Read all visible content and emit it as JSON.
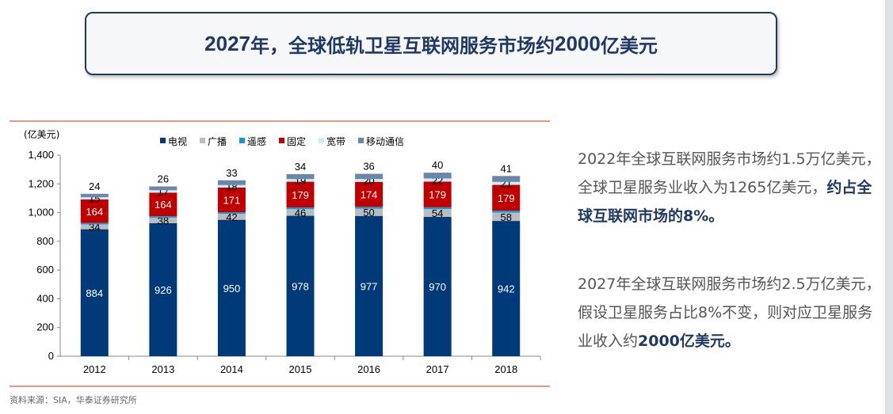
{
  "title": {
    "parts": [
      {
        "text": "2027",
        "num": true
      },
      {
        "text": "年，全球低轨卫星互联网服务市场约",
        "num": false
      },
      {
        "text": "2000",
        "num": true
      },
      {
        "text": "亿美元",
        "num": false
      }
    ]
  },
  "colors": {
    "tv": "#003a78",
    "broadcast": "#b9bcc0",
    "remote": "#1a95d4",
    "fixed": "#c00000",
    "broadband": "#c9ecf7",
    "mobile": "#6b87a8",
    "accent_line": "#e25b36",
    "title": "#1f3864"
  },
  "chart_data": {
    "type": "bar",
    "stacked": true,
    "unit_label": "(亿美元)",
    "categories": [
      "2012",
      "2013",
      "2014",
      "2015",
      "2016",
      "2017",
      "2018"
    ],
    "series": [
      {
        "name": "电视",
        "color_key": "tv",
        "values": [
          884,
          926,
          950,
          978,
          977,
          970,
          942
        ],
        "label_color": "#ffffff"
      },
      {
        "name": "广播",
        "color_key": "broadcast",
        "values": [
          34,
          38,
          42,
          46,
          50,
          54,
          58
        ],
        "label_color": "#000000"
      },
      {
        "name": "遥感",
        "color_key": "remote",
        "values": [
          10,
          11,
          11,
          12,
          13,
          13,
          14
        ],
        "label_color": null
      },
      {
        "name": "固定",
        "color_key": "fixed",
        "values": [
          164,
          164,
          171,
          179,
          174,
          179,
          179
        ],
        "label_color": "#ffffff"
      },
      {
        "name": "宽带",
        "color_key": "broadband",
        "values": [
          15,
          17,
          18,
          19,
          20,
          22,
          21
        ],
        "label_color": "#000000"
      },
      {
        "name": "移动通信",
        "color_key": "mobile",
        "values": [
          24,
          26,
          33,
          34,
          36,
          40,
          41
        ],
        "label_color": "#000000",
        "label_above": true
      }
    ],
    "y_ticks": [
      "0",
      "200",
      "400",
      "600",
      "800",
      "1,000",
      "1,200",
      "1,400"
    ],
    "ylim": [
      0,
      1400
    ],
    "legend": "top"
  },
  "side": {
    "p1_text": "2022年全球互联网服务市场约1.5万亿美元，全球卫星服务业收入为1265亿美元，",
    "p1_bold": "约占全球互联网市场的8%。",
    "p2_text": "2027年全球互联网服务市场约2.5万亿美元，假设卫星服务占比8%不变，则对应卫星服务业收入约",
    "p2_bold": "2000亿美元。"
  },
  "source": "资料来源：SIA，华泰证券研究所"
}
